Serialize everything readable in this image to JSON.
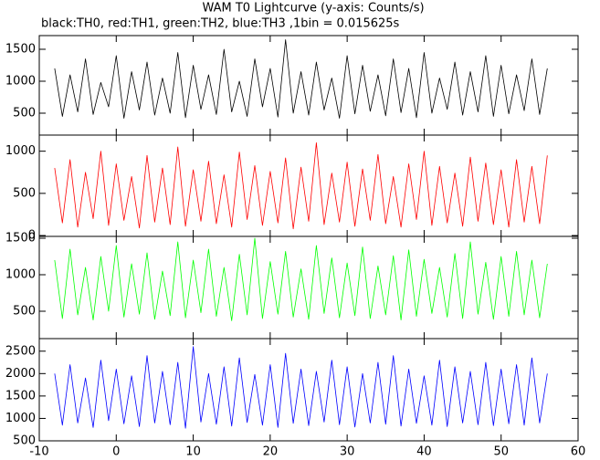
{
  "chart_data": [
    {
      "type": "line",
      "title": "WAM T0 Lightcurve (y-axis: Counts/s)",
      "subtitle": "black:TH0, red:TH1, green:TH2, blue:TH3 ,1bin = 0.015625s",
      "x": [
        -8,
        -7,
        -6,
        -5,
        -4,
        -3,
        -2,
        -1,
        0,
        1,
        2,
        3,
        4,
        5,
        6,
        7,
        8,
        9,
        10,
        11,
        12,
        13,
        14,
        15,
        16,
        17,
        18,
        19,
        20,
        21,
        22,
        23,
        24,
        25,
        26,
        27,
        28,
        29,
        30,
        31,
        32,
        33,
        34,
        35,
        36,
        37,
        38,
        39,
        40,
        41,
        42,
        43,
        44,
        45,
        46,
        47,
        48,
        49,
        50,
        51,
        52,
        53,
        54,
        55,
        56
      ],
      "series": [
        {
          "name": "TH0",
          "color": "#000000",
          "values": [
            1200,
            450,
            1100,
            520,
            1350,
            480,
            980,
            600,
            1400,
            420,
            1150,
            550,
            1300,
            470,
            1050,
            500,
            1450,
            430,
            1250,
            560,
            1100,
            480,
            1500,
            520,
            1000,
            450,
            1350,
            600,
            1200,
            440,
            1650,
            500,
            1150,
            470,
            1300,
            550,
            1050,
            420,
            1400,
            490,
            1250,
            530,
            1100,
            460,
            1350,
            510,
            1200,
            430,
            1450,
            500,
            1050,
            560,
            1300,
            470,
            1150,
            520,
            1400,
            450,
            1250,
            490,
            1100,
            540,
            1350,
            480,
            1200
          ]
        }
      ],
      "xlim": [
        -10,
        60
      ],
      "xticks": [
        -10,
        0,
        10,
        20,
        30,
        40,
        50,
        60
      ],
      "ylim": [
        157,
        1714
      ],
      "yticks": [
        500,
        1000,
        1500
      ]
    },
    {
      "type": "line",
      "x": [
        -8,
        -7,
        -6,
        -5,
        -4,
        -3,
        -2,
        -1,
        0,
        1,
        2,
        3,
        4,
        5,
        6,
        7,
        8,
        9,
        10,
        11,
        12,
        13,
        14,
        15,
        16,
        17,
        18,
        19,
        20,
        21,
        22,
        23,
        24,
        25,
        26,
        27,
        28,
        29,
        30,
        31,
        32,
        33,
        34,
        35,
        36,
        37,
        38,
        39,
        40,
        41,
        42,
        43,
        44,
        45,
        46,
        47,
        48,
        49,
        50,
        51,
        52,
        53,
        54,
        55,
        56
      ],
      "series": [
        {
          "name": "TH1",
          "color": "#ff0000",
          "values": [
            800,
            150,
            900,
            100,
            750,
            200,
            1000,
            120,
            850,
            180,
            700,
            90,
            950,
            160,
            800,
            130,
            1050,
            110,
            780,
            170,
            880,
            140,
            720,
            100,
            990,
            190,
            830,
            120,
            760,
            150,
            920,
            80,
            810,
            170,
            1100,
            130,
            740,
            160,
            870,
            110,
            790,
            180,
            960,
            140,
            700,
            100,
            850,
            190,
            1000,
            120,
            820,
            150,
            740,
            110,
            930,
            170,
            860,
            130,
            780,
            100,
            900,
            160,
            820,
            140,
            950
          ]
        }
      ],
      "xlim": [
        -10,
        60
      ],
      "xticks": [
        -10,
        0,
        10,
        20,
        30,
        40,
        50,
        60
      ],
      "ylim": [
        -10,
        1191
      ],
      "yticks": [
        0,
        500,
        1000
      ]
    },
    {
      "type": "line",
      "x": [
        -8,
        -7,
        -6,
        -5,
        -4,
        -3,
        -2,
        -1,
        0,
        1,
        2,
        3,
        4,
        5,
        6,
        7,
        8,
        9,
        10,
        11,
        12,
        13,
        14,
        15,
        16,
        17,
        18,
        19,
        20,
        21,
        22,
        23,
        24,
        25,
        26,
        27,
        28,
        29,
        30,
        31,
        32,
        33,
        34,
        35,
        36,
        37,
        38,
        39,
        40,
        41,
        42,
        43,
        44,
        45,
        46,
        47,
        48,
        49,
        50,
        51,
        52,
        53,
        54,
        55,
        56
      ],
      "series": [
        {
          "name": "TH2",
          "color": "#00ff00",
          "values": [
            1200,
            400,
            1350,
            450,
            1100,
            380,
            1250,
            500,
            1400,
            420,
            1150,
            460,
            1300,
            390,
            1050,
            440,
            1450,
            410,
            1200,
            480,
            1350,
            430,
            1100,
            370,
            1280,
            450,
            1500,
            400,
            1180,
            460,
            1320,
            420,
            1080,
            390,
            1400,
            470,
            1230,
            410,
            1160,
            440,
            1380,
            400,
            1120,
            450,
            1260,
            380,
            1340,
            430,
            1210,
            470,
            1100,
            420,
            1290,
            400,
            1450,
            460,
            1170,
            390,
            1250,
            430,
            1320,
            450,
            1200,
            410,
            1150
          ]
        }
      ],
      "xlim": [
        -10,
        60
      ],
      "xticks": [
        -10,
        0,
        10,
        20,
        30,
        40,
        50,
        60
      ],
      "ylim": [
        125,
        1525
      ],
      "yticks": [
        500,
        1000,
        1500
      ]
    },
    {
      "type": "line",
      "x": [
        -8,
        -7,
        -6,
        -5,
        -4,
        -3,
        -2,
        -1,
        0,
        1,
        2,
        3,
        4,
        5,
        6,
        7,
        8,
        9,
        10,
        11,
        12,
        13,
        14,
        15,
        16,
        17,
        18,
        19,
        20,
        21,
        22,
        23,
        24,
        25,
        26,
        27,
        28,
        29,
        30,
        31,
        32,
        33,
        34,
        35,
        36,
        37,
        38,
        39,
        40,
        41,
        42,
        43,
        44,
        45,
        46,
        47,
        48,
        49,
        50,
        51,
        52,
        53,
        54,
        55,
        56
      ],
      "series": [
        {
          "name": "TH3",
          "color": "#0000ff",
          "values": [
            2000,
            850,
            2200,
            900,
            1900,
            800,
            2300,
            950,
            2100,
            880,
            1950,
            820,
            2400,
            900,
            2050,
            860,
            2250,
            780,
            2600,
            920,
            2000,
            870,
            2150,
            830,
            2350,
            910,
            1980,
            850,
            2200,
            800,
            2450,
            890,
            2100,
            840,
            2050,
            920,
            2300,
            860,
            2150,
            810,
            2000,
            900,
            2250,
            870,
            2400,
            830,
            2100,
            890,
            1950,
            850,
            2300,
            820,
            2150,
            900,
            2050,
            860,
            2250,
            840,
            2100,
            880,
            2200,
            850,
            2350,
            900,
            2000
          ]
        }
      ],
      "xlim": [
        -10,
        60
      ],
      "xticks": [
        -10,
        0,
        10,
        20,
        30,
        40,
        50,
        60
      ],
      "ylim": [
        500,
        2780
      ],
      "yticks": [
        500,
        1000,
        1500,
        2000,
        2500
      ]
    }
  ]
}
